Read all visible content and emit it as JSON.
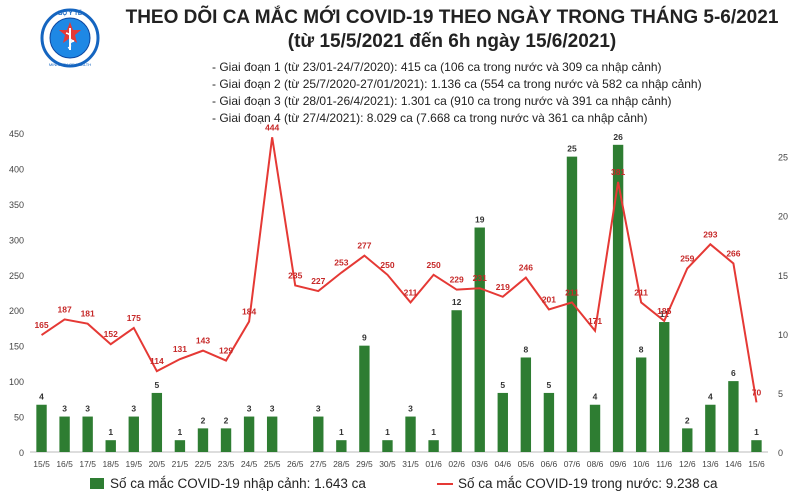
{
  "header": {
    "logo_text": "BỘ Y TẾ",
    "logo_subtext": "MINISTRY OF HEALTH",
    "title": "THEO DÕI CA MẮC MỚI COVID-19 THEO NGÀY TRONG THÁNG 5-6/2021",
    "subtitle": "(từ 15/5/2021 đến 6h ngày 15/6/2021)"
  },
  "phases": [
    "- Giai đoạn 1 (từ 23/01-24/7/2020): 415 ca (106 ca trong nước và 309 ca nhập cảnh)",
    "- Giai đoạn 2 (từ 25/7/2020-27/01/2021): 1.136 ca (554 ca trong nước và 582 ca nhập cảnh)",
    "- Giai đoạn 3 (từ 28/01-26/4/2021): 1.301 ca (910 ca trong nước và 391 ca nhập cảnh)",
    "- Giai đoạn 4 (từ 27/4/2021): 8.029 ca (7.668 ca trong nước và 361 ca nhập cảnh)"
  ],
  "legend": {
    "bar_label": "Số ca mắc COVID-19 nhập cảnh: 1.643 ca",
    "line_label": "Số ca mắc COVID-19 trong nước: 9.238 ca"
  },
  "colors": {
    "bar": "#2e7d32",
    "line": "#e53935",
    "bar_label": "#333333",
    "line_label": "#c62828",
    "axis_text": "#444444"
  },
  "chart_data": {
    "type": "bar+line",
    "categories": [
      "15/5",
      "16/5",
      "17/5",
      "18/5",
      "19/5",
      "20/5",
      "21/5",
      "22/5",
      "23/5",
      "24/5",
      "25/5",
      "26/5",
      "27/5",
      "28/5",
      "29/5",
      "30/5",
      "31/5",
      "01/6",
      "02/6",
      "03/6",
      "04/6",
      "05/6",
      "06/6",
      "07/6",
      "08/6",
      "09/6",
      "10/6",
      "11/6",
      "12/6",
      "13/6",
      "14/6",
      "15/6"
    ],
    "left_axis": {
      "min": 0,
      "max": 450,
      "ticks": [
        0,
        50,
        100,
        150,
        200,
        250,
        300,
        350,
        400,
        450
      ]
    },
    "right_axis": {
      "min": 0,
      "max": 27,
      "ticks": [
        0,
        5,
        10,
        15,
        20,
        25
      ]
    },
    "series": [
      {
        "name": "Số ca mắc COVID-19 nhập cảnh",
        "type": "bar",
        "axis": "right",
        "values": [
          4,
          3,
          3,
          1,
          3,
          5,
          1,
          2,
          2,
          3,
          3,
          null,
          3,
          1,
          9,
          1,
          3,
          1,
          12,
          19,
          5,
          8,
          5,
          25,
          4,
          26,
          8,
          11,
          2,
          4,
          6,
          1
        ]
      },
      {
        "name": "Số ca mắc COVID-19 trong nước",
        "type": "line",
        "axis": "left",
        "values": [
          165,
          187,
          181,
          152,
          175,
          114,
          131,
          143,
          129,
          184,
          444,
          235,
          227,
          253,
          277,
          250,
          211,
          250,
          229,
          231,
          219,
          246,
          201,
          211,
          171,
          381,
          211,
          185,
          259,
          293,
          266,
          70
        ]
      }
    ],
    "grid": false,
    "legend_position": "bottom"
  }
}
